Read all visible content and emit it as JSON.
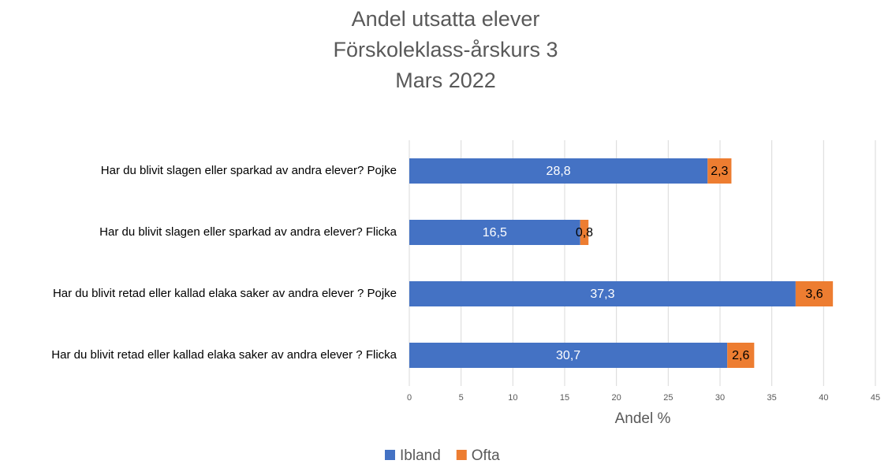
{
  "chart_data": {
    "type": "stacked_bar_horizontal",
    "title": [
      "Andel utsatta elever",
      "Förskoleklass-årskurs 3",
      "Mars 2022"
    ],
    "categories": [
      "Har du blivit slagen eller sparkad av andra elever? Pojke",
      "Har du blivit slagen eller sparkad av andra elever? Flicka",
      "Har du blivit retad eller kallad elaka saker av andra elever ? Pojke",
      "Har du blivit retad eller kallad elaka saker av andra elever ? Flicka"
    ],
    "series": [
      {
        "name": "Ibland",
        "color": "#4472c4",
        "label_color": "#ffffff",
        "values": [
          28.8,
          16.5,
          37.3,
          30.7
        ],
        "value_labels": [
          "28,8",
          "16,5",
          "37,3",
          "30,7"
        ]
      },
      {
        "name": "Ofta",
        "color": "#ed7d31",
        "label_color": "#000000",
        "values": [
          2.3,
          0.8,
          3.6,
          2.6
        ],
        "value_labels": [
          "2,3",
          "0,8",
          "3,6",
          "2,6"
        ]
      }
    ],
    "x_label": "Andel %",
    "xlim": [
      0,
      45
    ],
    "xticks": [
      0,
      5,
      10,
      15,
      20,
      25,
      30,
      35,
      40,
      45
    ],
    "grid": true,
    "legend": "bottom"
  }
}
